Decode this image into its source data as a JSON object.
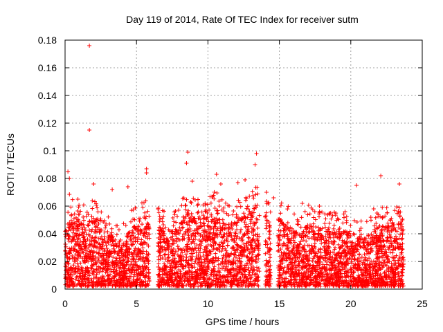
{
  "chart_data": {
    "type": "scatter",
    "title": "Day 119 of 2014, Rate Of TEC Index for receiver sutm",
    "xlabel": "GPS time / hours",
    "ylabel": "ROTI / TECUs",
    "xlim": [
      0,
      25
    ],
    "ylim": [
      0,
      0.18
    ],
    "x_ticks": [
      0,
      5,
      10,
      15,
      20,
      25
    ],
    "x_tick_labels": [
      "0",
      "5",
      "10",
      "15",
      "20",
      "25"
    ],
    "y_ticks": [
      0,
      0.02,
      0.04,
      0.06,
      0.08,
      0.1,
      0.12,
      0.14,
      0.16,
      0.18
    ],
    "y_tick_labels": [
      "0",
      "0.02",
      "0.04",
      "0.06",
      "0.08",
      "0.1",
      "0.12",
      "0.14",
      "0.16",
      "0.18"
    ],
    "grid": true,
    "marker": "+",
    "color": "#ff0000",
    "series": [
      {
        "name": "ROTI",
        "segments": [
          {
            "x_start": 0.0,
            "x_end": 5.9
          },
          {
            "x_start": 6.5,
            "x_end": 13.6
          },
          {
            "x_start": 14.0,
            "x_end": 14.4
          },
          {
            "x_start": 14.9,
            "x_end": 23.7
          }
        ],
        "envelope": [
          [
            0,
            0.04
          ],
          [
            0.3,
            0.06
          ],
          [
            0.6,
            0.045
          ],
          [
            1,
            0.05
          ],
          [
            1.5,
            0.045
          ],
          [
            2,
            0.05
          ],
          [
            2.5,
            0.04
          ],
          [
            3,
            0.04
          ],
          [
            3.5,
            0.035
          ],
          [
            4,
            0.03
          ],
          [
            4.5,
            0.04
          ],
          [
            5,
            0.045
          ],
          [
            5.5,
            0.05
          ],
          [
            5.9,
            0.05
          ],
          [
            6.5,
            0.045
          ],
          [
            7,
            0.04
          ],
          [
            7.5,
            0.04
          ],
          [
            8,
            0.045
          ],
          [
            8.5,
            0.055
          ],
          [
            9,
            0.05
          ],
          [
            9.5,
            0.05
          ],
          [
            10,
            0.05
          ],
          [
            10.5,
            0.055
          ],
          [
            11,
            0.05
          ],
          [
            11.5,
            0.045
          ],
          [
            12,
            0.05
          ],
          [
            12.5,
            0.05
          ],
          [
            13,
            0.055
          ],
          [
            13.6,
            0.06
          ],
          [
            14,
            0.055
          ],
          [
            14.4,
            0.05
          ],
          [
            14.9,
            0.05
          ],
          [
            15.5,
            0.045
          ],
          [
            16,
            0.04
          ],
          [
            16.5,
            0.04
          ],
          [
            17,
            0.045
          ],
          [
            17.5,
            0.045
          ],
          [
            18,
            0.04
          ],
          [
            18.5,
            0.04
          ],
          [
            19,
            0.04
          ],
          [
            19.5,
            0.04
          ],
          [
            20,
            0.04
          ],
          [
            20.5,
            0.035
          ],
          [
            21,
            0.035
          ],
          [
            21.5,
            0.04
          ],
          [
            22,
            0.045
          ],
          [
            22.5,
            0.045
          ],
          [
            23,
            0.045
          ],
          [
            23.7,
            0.045
          ]
        ],
        "notable_points": [
          {
            "x": 1.7,
            "y": 0.176
          },
          {
            "x": 1.7,
            "y": 0.115
          },
          {
            "x": 0.2,
            "y": 0.085
          },
          {
            "x": 0.3,
            "y": 0.08
          },
          {
            "x": 5.7,
            "y": 0.087
          },
          {
            "x": 5.7,
            "y": 0.084
          },
          {
            "x": 8.6,
            "y": 0.099
          },
          {
            "x": 8.5,
            "y": 0.091
          },
          {
            "x": 10.6,
            "y": 0.083
          },
          {
            "x": 12.1,
            "y": 0.077
          },
          {
            "x": 13.4,
            "y": 0.098
          },
          {
            "x": 13.3,
            "y": 0.09
          },
          {
            "x": 4.4,
            "y": 0.074
          },
          {
            "x": 3.3,
            "y": 0.072
          },
          {
            "x": 22.1,
            "y": 0.082
          },
          {
            "x": 20.4,
            "y": 0.075
          },
          {
            "x": 23.4,
            "y": 0.076
          },
          {
            "x": 2.0,
            "y": 0.076
          },
          {
            "x": 8.9,
            "y": 0.078
          },
          {
            "x": 12.6,
            "y": 0.079
          },
          {
            "x": 10.9,
            "y": 0.076
          },
          {
            "x": 0.9,
            "y": 0.065
          },
          {
            "x": 16.6,
            "y": 0.062
          },
          {
            "x": 17.8,
            "y": 0.06
          },
          {
            "x": 19.6,
            "y": 0.056
          },
          {
            "x": 21.6,
            "y": 0.058
          },
          {
            "x": 14.6,
            "y": 0.066
          },
          {
            "x": 14.1,
            "y": 0.07
          }
        ]
      }
    ]
  }
}
